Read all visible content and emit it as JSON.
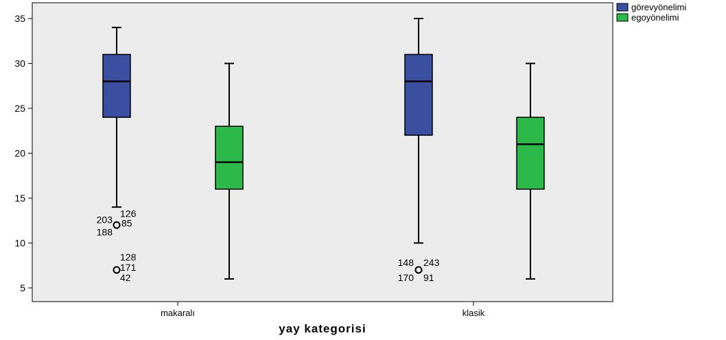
{
  "chart_data": {
    "type": "boxplot",
    "xlabel": "yay kategorisi",
    "ylabel": "",
    "ylim": [
      3.5,
      36
    ],
    "yticks": [
      5,
      10,
      15,
      20,
      25,
      30,
      35
    ],
    "grid": false,
    "legend_position": "top-right",
    "categories": [
      "makaralı",
      "klasik"
    ],
    "series": [
      {
        "name": "görevyönelimi",
        "color": "#3a4fa0",
        "boxes": [
          {
            "min": 14,
            "q1": 24,
            "median": 28,
            "q3": 31,
            "max": 34,
            "outliers": [
              {
                "value": 12,
                "labels": [
                  "203",
                  "126",
                  "85",
                  "188"
                ]
              },
              {
                "value": 7,
                "labels": [
                  "128",
                  "171",
                  "42"
                ]
              }
            ]
          },
          {
            "min": 10,
            "q1": 22,
            "median": 28,
            "q3": 31,
            "max": 35,
            "outliers": [
              {
                "value": 7,
                "labels": [
                  "148",
                  "243",
                  "170",
                  "91"
                ]
              }
            ]
          }
        ]
      },
      {
        "name": "egoyönelimi",
        "color": "#2db84a",
        "boxes": [
          {
            "min": 6,
            "q1": 16,
            "median": 19,
            "q3": 23,
            "max": 30,
            "outliers": []
          },
          {
            "min": 6,
            "q1": 16,
            "median": 21,
            "q3": 24,
            "max": 30,
            "outliers": []
          }
        ]
      }
    ]
  }
}
